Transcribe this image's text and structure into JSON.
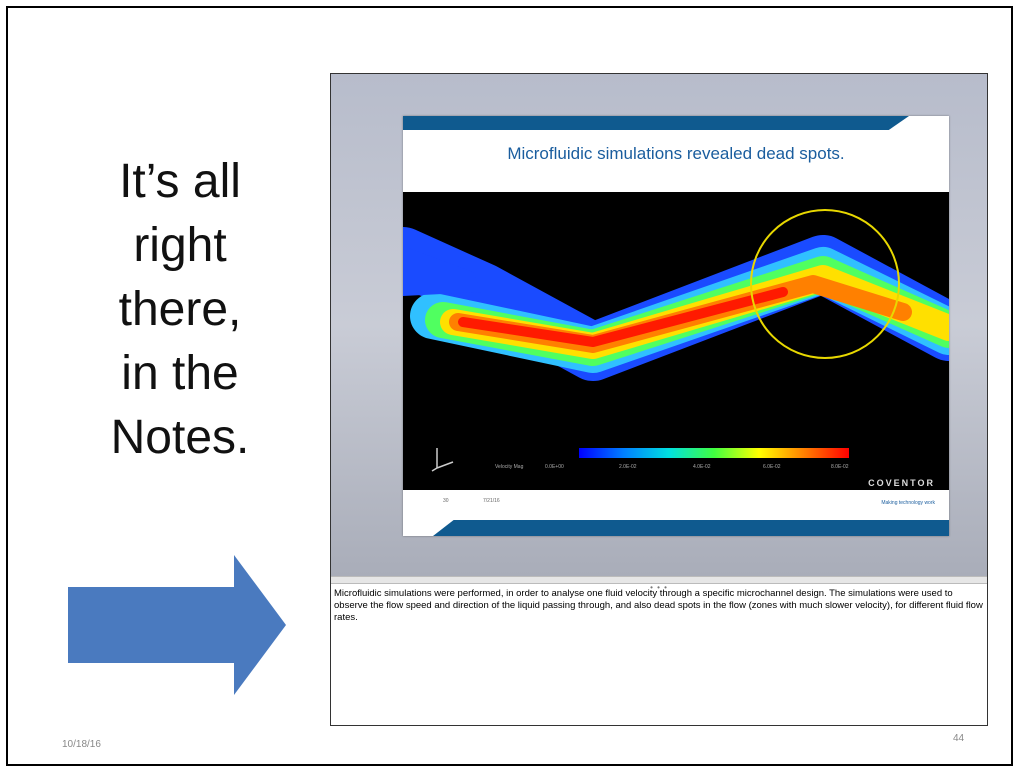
{
  "slide": {
    "headline_lines": [
      "It’s all",
      "right",
      "there,",
      "in the",
      "Notes."
    ],
    "date": "10/18/16",
    "page_number": "44",
    "arrow_color": "#4a7abf"
  },
  "presenter_view": {
    "thumbnail": {
      "title": "Microfluidic simulations revealed dead spots.",
      "legend_title": "Velocity Mag",
      "legend_ticks": [
        "0.0E+00",
        "2.0E-02",
        "4.0E-02",
        "6.0E-02",
        "8.0E-02"
      ],
      "footer_left": "30",
      "footer_mid": "7/21/16",
      "brand": "COVENTOR",
      "brand_sub": "Making technology\nwork"
    },
    "splitter_handle": "• • •",
    "notes_text": "Microfluidic simulations were performed, in order to analyse one fluid velocity through a specific microchannel design. The simulations were used to observe the flow speed and direction of the liquid passing through, and also dead spots in the flow (zones with much slower velocity), for different fluid flow rates."
  },
  "colors": {
    "title_blue": "#1a5d9e",
    "bar_blue": "#0f5a8f",
    "circle_yellow": "#e8d800"
  }
}
